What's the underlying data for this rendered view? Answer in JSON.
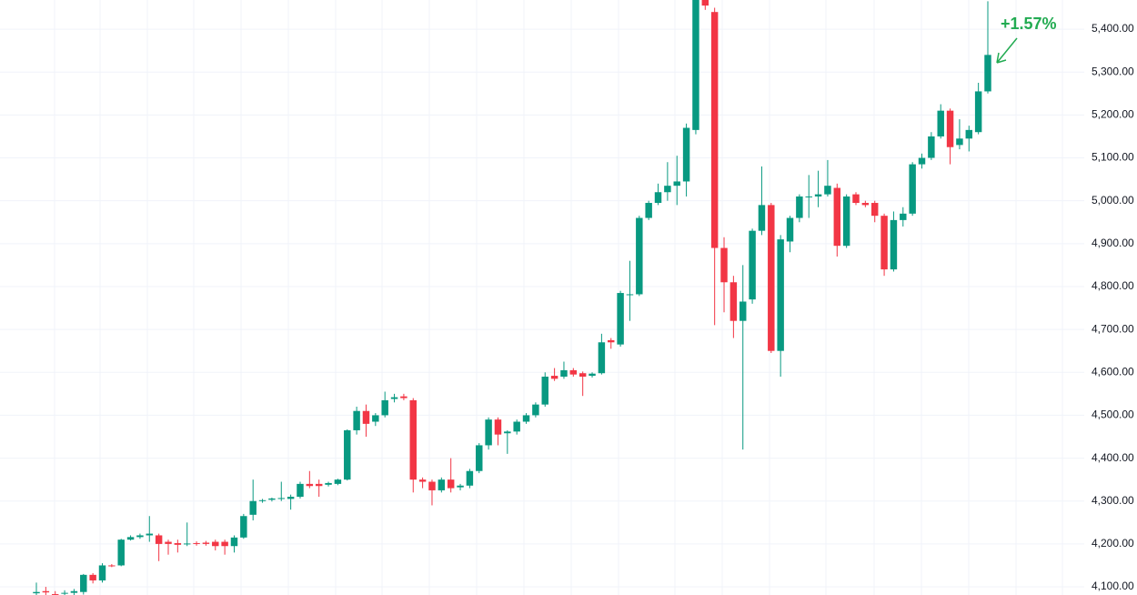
{
  "chart_data": {
    "type": "candlestick",
    "up_color": "#089981",
    "down_color": "#f23645",
    "grid": true,
    "ylim": [
      4081,
      5468
    ],
    "yticks": [
      {
        "value": 4100,
        "label": "4,100.00"
      },
      {
        "value": 4200,
        "label": "4,200.00"
      },
      {
        "value": 4300,
        "label": "4,300.00"
      },
      {
        "value": 4400,
        "label": "4,400.00"
      },
      {
        "value": 4500,
        "label": "4,500.00"
      },
      {
        "value": 4600,
        "label": "4,600.00"
      },
      {
        "value": 4700,
        "label": "4,700.00"
      },
      {
        "value": 4800,
        "label": "4,800.00"
      },
      {
        "value": 4900,
        "label": "4,900.00"
      },
      {
        "value": 5000,
        "label": "5,000.00"
      },
      {
        "value": 5100,
        "label": "5,100.00"
      },
      {
        "value": 5200,
        "label": "5,200.00"
      },
      {
        "value": 5300,
        "label": "5,300.00"
      },
      {
        "value": 5400,
        "label": "5,400.00"
      }
    ],
    "annotation": {
      "text": "+1.57%",
      "color": "#22ab52"
    },
    "open": [
      4085,
      4090,
      4083,
      4084,
      4086,
      4088,
      4128,
      4115,
      4150,
      4150,
      4210,
      4216,
      4220,
      4220,
      4205,
      4202,
      4199,
      4202,
      4203,
      4205,
      4205,
      4195,
      4215,
      4268,
      4300,
      4303,
      4305,
      4305,
      4310,
      4340,
      4340,
      4338,
      4340,
      4350,
      4465,
      4510,
      4485,
      4500,
      4538,
      4544,
      4535,
      4350,
      4345,
      4325,
      4350,
      4332,
      4336,
      4370,
      4430,
      4490,
      4458,
      4462,
      4485,
      4500,
      4525,
      4592,
      4590,
      4605,
      4598,
      4592,
      4598,
      4675,
      4665,
      4780,
      4782,
      4960,
      4995,
      5020,
      5035,
      5045,
      5165,
      5490,
      5440,
      4890,
      4810,
      4720,
      4770,
      4930,
      4990,
      4650,
      4905,
      4960,
      5008,
      5010,
      5015,
      5030,
      4895,
      5015,
      4995,
      4995,
      4965,
      4840,
      4955,
      4970,
      5085,
      5100,
      5150,
      5210,
      5130,
      5145,
      5160,
      5255
    ],
    "high": [
      4110,
      4100,
      4090,
      4092,
      4095,
      4130,
      4132,
      4155,
      4153,
      4212,
      4220,
      4224,
      4265,
      4224,
      4210,
      4210,
      4250,
      4206,
      4207,
      4210,
      4210,
      4220,
      4270,
      4350,
      4305,
      4308,
      4345,
      4315,
      4345,
      4370,
      4350,
      4345,
      4352,
      4467,
      4520,
      4525,
      4505,
      4555,
      4550,
      4550,
      4540,
      4355,
      4350,
      4355,
      4400,
      4340,
      4375,
      4435,
      4495,
      4495,
      4465,
      4490,
      4505,
      4530,
      4600,
      4610,
      4625,
      4610,
      4602,
      4600,
      4690,
      4680,
      4790,
      4860,
      4965,
      5000,
      5040,
      5090,
      5105,
      5180,
      5560,
      5500,
      5450,
      4915,
      4825,
      4850,
      4935,
      5080,
      4995,
      4920,
      4965,
      5015,
      5060,
      5070,
      5095,
      5040,
      5015,
      5020,
      5000,
      5000,
      4970,
      4975,
      4985,
      5090,
      5110,
      5160,
      5225,
      5215,
      5190,
      5175,
      5275,
      5465
    ],
    "low": [
      4080,
      4080,
      4078,
      4079,
      4080,
      4082,
      4108,
      4110,
      4146,
      4148,
      4208,
      4212,
      4205,
      4160,
      4175,
      4180,
      4195,
      4196,
      4196,
      4185,
      4175,
      4180,
      4212,
      4255,
      4296,
      4299,
      4300,
      4280,
      4306,
      4330,
      4310,
      4334,
      4337,
      4348,
      4455,
      4450,
      4475,
      4495,
      4530,
      4535,
      4320,
      4330,
      4290,
      4320,
      4320,
      4325,
      4330,
      4365,
      4420,
      4430,
      4410,
      4455,
      4480,
      4495,
      4520,
      4580,
      4585,
      4590,
      4545,
      4588,
      4595,
      4655,
      4660,
      4720,
      4778,
      4955,
      4990,
      5000,
      4990,
      5010,
      5155,
      5445,
      4710,
      4740,
      4680,
      4420,
      4760,
      4920,
      4645,
      4590,
      4880,
      4950,
      4960,
      4985,
      5010,
      4870,
      4890,
      4990,
      4985,
      4950,
      4825,
      4835,
      4940,
      4965,
      5075,
      5095,
      5145,
      5085,
      5120,
      5115,
      5155,
      5250
    ],
    "close": [
      4088,
      4087,
      4082,
      4086,
      4090,
      4128,
      4115,
      4150,
      4148,
      4210,
      4216,
      4220,
      4224,
      4200,
      4200,
      4198,
      4201,
      4200,
      4200,
      4195,
      4195,
      4215,
      4265,
      4300,
      4302,
      4306,
      4307,
      4310,
      4340,
      4335,
      4335,
      4342,
      4350,
      4465,
      4510,
      4480,
      4500,
      4535,
      4542,
      4540,
      4350,
      4345,
      4325,
      4350,
      4330,
      4336,
      4370,
      4430,
      4490,
      4455,
      4462,
      4485,
      4500,
      4525,
      4590,
      4585,
      4605,
      4595,
      4590,
      4597,
      4670,
      4670,
      4785,
      4782,
      4960,
      4995,
      5020,
      5035,
      5045,
      5170,
      5520,
      5455,
      4890,
      4810,
      4720,
      4765,
      4930,
      4990,
      4650,
      4910,
      4960,
      5010,
      5010,
      5015,
      5035,
      4895,
      5010,
      4995,
      4990,
      4965,
      4840,
      4955,
      4970,
      5085,
      5100,
      5150,
      5210,
      5125,
      5145,
      5165,
      5255,
      5340
    ]
  }
}
